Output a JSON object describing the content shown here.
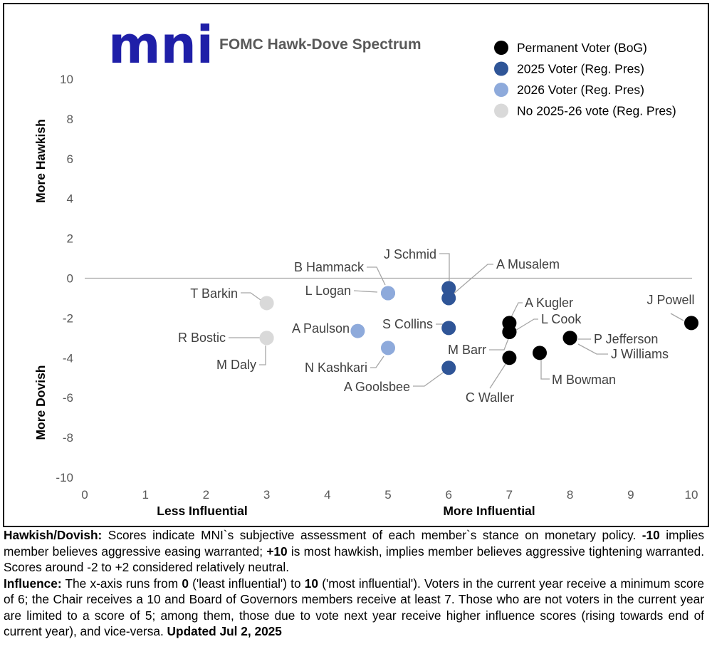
{
  "logo": {
    "text": "mni"
  },
  "chart_data": {
    "type": "scatter",
    "title": "FOMC Hawk-Dove Spectrum",
    "xlim": [
      0,
      10
    ],
    "ylim": [
      -10,
      10
    ],
    "xticks": [
      0,
      1,
      2,
      3,
      4,
      5,
      6,
      7,
      8,
      9,
      10
    ],
    "yticks": [
      -10,
      -8,
      -6,
      -4,
      -2,
      0,
      2,
      4,
      6,
      8,
      10
    ],
    "xlabel_left": "Less Influential",
    "xlabel_right": "More Influential",
    "ylabel_top": "More Hawkish",
    "ylabel_bottom": "More Dovish",
    "legend_position": "top-right",
    "legend": [
      {
        "key": "perm",
        "label": "Permanent Voter (BoG)",
        "color": "#000000"
      },
      {
        "key": "v25",
        "label": "2025 Voter (Reg. Pres)",
        "color": "#2f5597"
      },
      {
        "key": "v26",
        "label": "2026 Voter (Reg. Pres)",
        "color": "#8eaadb"
      },
      {
        "key": "nov",
        "label": "No 2025-26 vote (Reg. Pres)",
        "color": "#d9d9d9"
      }
    ],
    "points": [
      {
        "name": "J Powell",
        "x": 10,
        "y": -2.25,
        "group": "perm"
      },
      {
        "name": "P Jefferson",
        "x": 8,
        "y": -3,
        "group": "perm"
      },
      {
        "name": "J Williams",
        "x": 8,
        "y": -3,
        "group": "perm"
      },
      {
        "name": "M Bowman",
        "x": 7.5,
        "y": -3.75,
        "group": "perm"
      },
      {
        "name": "A Kugler",
        "x": 7,
        "y": -2.25,
        "group": "perm"
      },
      {
        "name": "L Cook",
        "x": 7,
        "y": -2.7,
        "group": "perm"
      },
      {
        "name": "M Barr",
        "x": 7,
        "y": -2.7,
        "group": "perm"
      },
      {
        "name": "C Waller",
        "x": 7,
        "y": -4,
        "group": "perm"
      },
      {
        "name": "J Schmid",
        "x": 6,
        "y": -0.5,
        "group": "v25"
      },
      {
        "name": "A Musalem",
        "x": 6,
        "y": -1,
        "group": "v25"
      },
      {
        "name": "S Collins",
        "x": 6,
        "y": -2.5,
        "group": "v25"
      },
      {
        "name": "A Goolsbee",
        "x": 6,
        "y": -4.5,
        "group": "v25"
      },
      {
        "name": "B Hammack",
        "x": 5,
        "y": -0.75,
        "group": "v26"
      },
      {
        "name": "L Logan",
        "x": 5,
        "y": -0.75,
        "group": "v26"
      },
      {
        "name": "A Paulson",
        "x": 4.5,
        "y": -2.65,
        "group": "v26"
      },
      {
        "name": "N Kashkari",
        "x": 5,
        "y": -3.5,
        "group": "v26"
      },
      {
        "name": "T Barkin",
        "x": 3,
        "y": -1.25,
        "group": "nov"
      },
      {
        "name": "R Bostic",
        "x": 3,
        "y": -3,
        "group": "nov"
      },
      {
        "name": "M Daly",
        "x": 3,
        "y": -3,
        "group": "nov"
      }
    ]
  },
  "caption": {
    "p1": [
      {
        "text": "Hawkish/Dovish:",
        "bold": true
      },
      {
        "text": "  Scores indicate MNI`s subjective assessment of each member`s stance on monetary policy. "
      },
      {
        "text": "-10",
        "bold": true
      },
      {
        "text": " implies member believes aggressive easing warranted; "
      },
      {
        "text": "+10",
        "bold": true
      },
      {
        "text": " is most hawkish, implies member believes aggressive tightening warranted. Scores around -2 to +2 considered relatively neutral."
      }
    ],
    "p2": [
      {
        "text": "Influence:",
        "bold": true
      },
      {
        "text": " The x-axis runs from "
      },
      {
        "text": "0",
        "bold": true
      },
      {
        "text": " ('least influential') to "
      },
      {
        "text": "10",
        "bold": true
      },
      {
        "text": " ('most influential'). Voters in the current year receive a minimum score of 6; the Chair receives a 10 and Board of Governors members receive at least 7. Those who are not voters in the current year are limited to a score of 5; among them, those due to vote next year receive higher influence scores (rising towards end of current year), and vice-versa. "
      },
      {
        "text": "Updated Jul 2, 2025",
        "bold": true
      }
    ]
  }
}
